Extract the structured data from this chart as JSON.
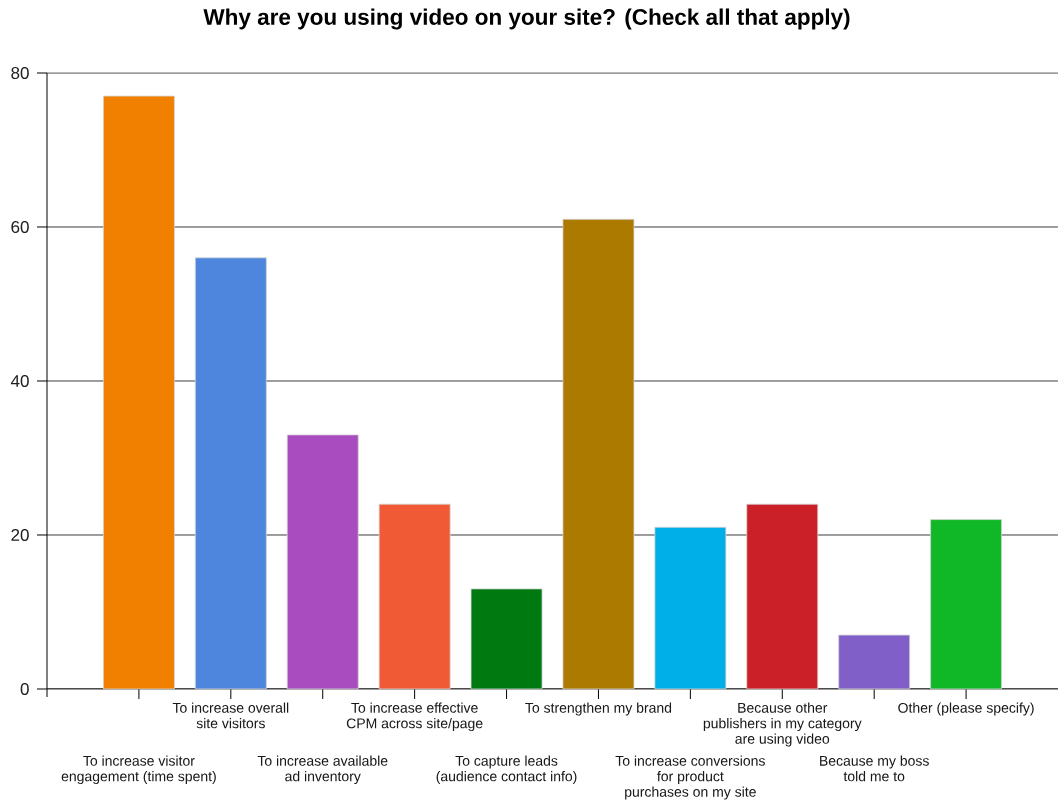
{
  "chart_data": {
    "type": "bar",
    "title": "Why are you using video on your site? (Check all that apply)",
    "categories": [
      "To increase visitor\nengagement (time spent)",
      "To increase overall\nsite visitors",
      "To increase available\nad inventory",
      "To increase effective\nCPM across site/page",
      "To capture leads\n(audience contact info)",
      "To strengthen my brand",
      "To increase conversions\nfor product\npurchases on my site",
      "Because other\npublishers in my category\nare using video",
      "Because my boss\ntold me to",
      "Other (please specify)"
    ],
    "values": [
      77,
      56,
      33,
      24,
      13,
      61,
      21,
      24,
      7,
      22
    ],
    "colors": [
      "#f28000",
      "#4f86dd",
      "#a84cc0",
      "#f05a35",
      "#007a10",
      "#ad7a00",
      "#00aee8",
      "#cc2028",
      "#8060c8",
      "#10b828"
    ],
    "ylim": [
      0,
      80
    ],
    "yticks": [
      0,
      20,
      40,
      60,
      80
    ],
    "grid": "y"
  }
}
